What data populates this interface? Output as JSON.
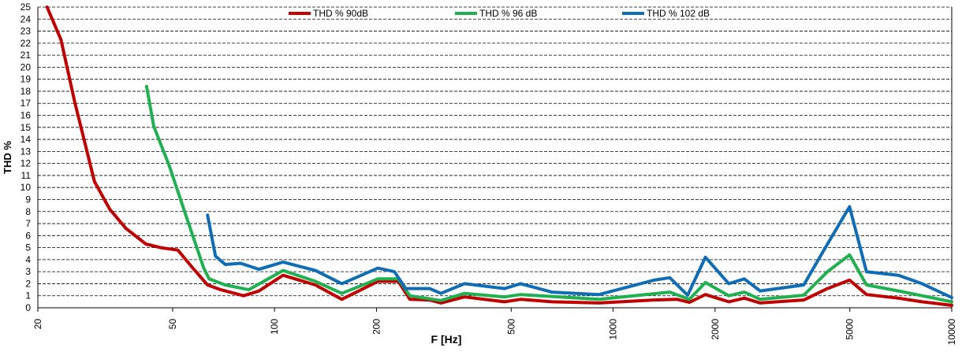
{
  "chart_data": {
    "type": "line",
    "x_label": "F [Hz]",
    "y_label": "THD %",
    "log_x": true,
    "grid": true,
    "legend": "top",
    "xlim": [
      20,
      10000
    ],
    "xticks": [
      20,
      50,
      100,
      200,
      500,
      1000,
      2000,
      5000,
      10000
    ],
    "ylim": [
      0,
      25
    ],
    "yticks": [
      0,
      1,
      2,
      3,
      4,
      5,
      6,
      7,
      8,
      9,
      10,
      11,
      12,
      13,
      14,
      15,
      16,
      17,
      18,
      19,
      20,
      21,
      22,
      23,
      24,
      25
    ],
    "series": [
      {
        "name": "THD % 90dB",
        "color": "#c00000",
        "x": [
          21.3,
          23.4,
          25.7,
          29.4,
          32.6,
          36.4,
          41.7,
          46.1,
          51.8,
          57.4,
          63.4,
          69.4,
          81,
          90,
          106,
          132,
          158,
          202,
          232,
          251,
          287,
          310,
          364,
          478,
          533,
          659,
          908,
          1320,
          1546,
          1680,
          1873,
          2196,
          2440,
          2718,
          3655,
          4295,
          4990,
          5600,
          6960,
          8170,
          10000
        ],
        "values": [
          25,
          22.3,
          17.1,
          10.5,
          8.2,
          6.6,
          5.3,
          5.0,
          4.8,
          3.3,
          1.9,
          1.5,
          1.0,
          1.4,
          2.7,
          1.9,
          0.7,
          2.2,
          2.2,
          0.7,
          0.65,
          0.4,
          0.9,
          0.5,
          0.7,
          0.5,
          0.4,
          0.65,
          0.7,
          0.45,
          1.1,
          0.5,
          0.8,
          0.4,
          0.65,
          1.6,
          2.3,
          1.1,
          0.8,
          0.5,
          0.2
        ]
      },
      {
        "name": "THD % 96 dB",
        "color": "#1fb050",
        "x": [
          41.9,
          44,
          48.9,
          54.4,
          61.8,
          64.1,
          71.5,
          83.9,
          106,
          132,
          158,
          202,
          232,
          251,
          310,
          364,
          478,
          533,
          908,
          1470,
          1680,
          1873,
          2196,
          2440,
          2718,
          3655,
          4295,
          4990,
          5600,
          6960,
          8170,
          10000
        ],
        "values": [
          18.4,
          15.1,
          11.8,
          7.9,
          3.3,
          2.4,
          1.9,
          1.5,
          3.1,
          2.2,
          1.2,
          2.4,
          2.4,
          1.0,
          0.6,
          1.2,
          0.9,
          1.1,
          0.7,
          1.3,
          0.7,
          2.1,
          1.0,
          1.3,
          0.7,
          1.05,
          3.0,
          4.4,
          1.9,
          1.4,
          1.0,
          0.5
        ]
      },
      {
        "name": "THD % 102 dB",
        "color": "#0f6db5",
        "x": [
          63.4,
          66.9,
          71.5,
          79.4,
          90,
          106,
          132,
          158,
          202,
          226,
          244,
          287,
          310,
          364,
          478,
          533,
          659,
          908,
          1320,
          1470,
          1660,
          1873,
          2196,
          2440,
          2718,
          3655,
          4295,
          4990,
          5600,
          6960,
          8170,
          10000
        ],
        "values": [
          7.7,
          4.3,
          3.6,
          3.7,
          3.2,
          3.8,
          3.1,
          2.0,
          3.3,
          3.0,
          1.6,
          1.6,
          1.2,
          2.0,
          1.6,
          2.0,
          1.3,
          1.1,
          2.3,
          2.5,
          1.05,
          4.2,
          2.0,
          2.4,
          1.4,
          1.9,
          5.3,
          8.4,
          3.0,
          2.7,
          2.0,
          0.85
        ]
      }
    ]
  }
}
